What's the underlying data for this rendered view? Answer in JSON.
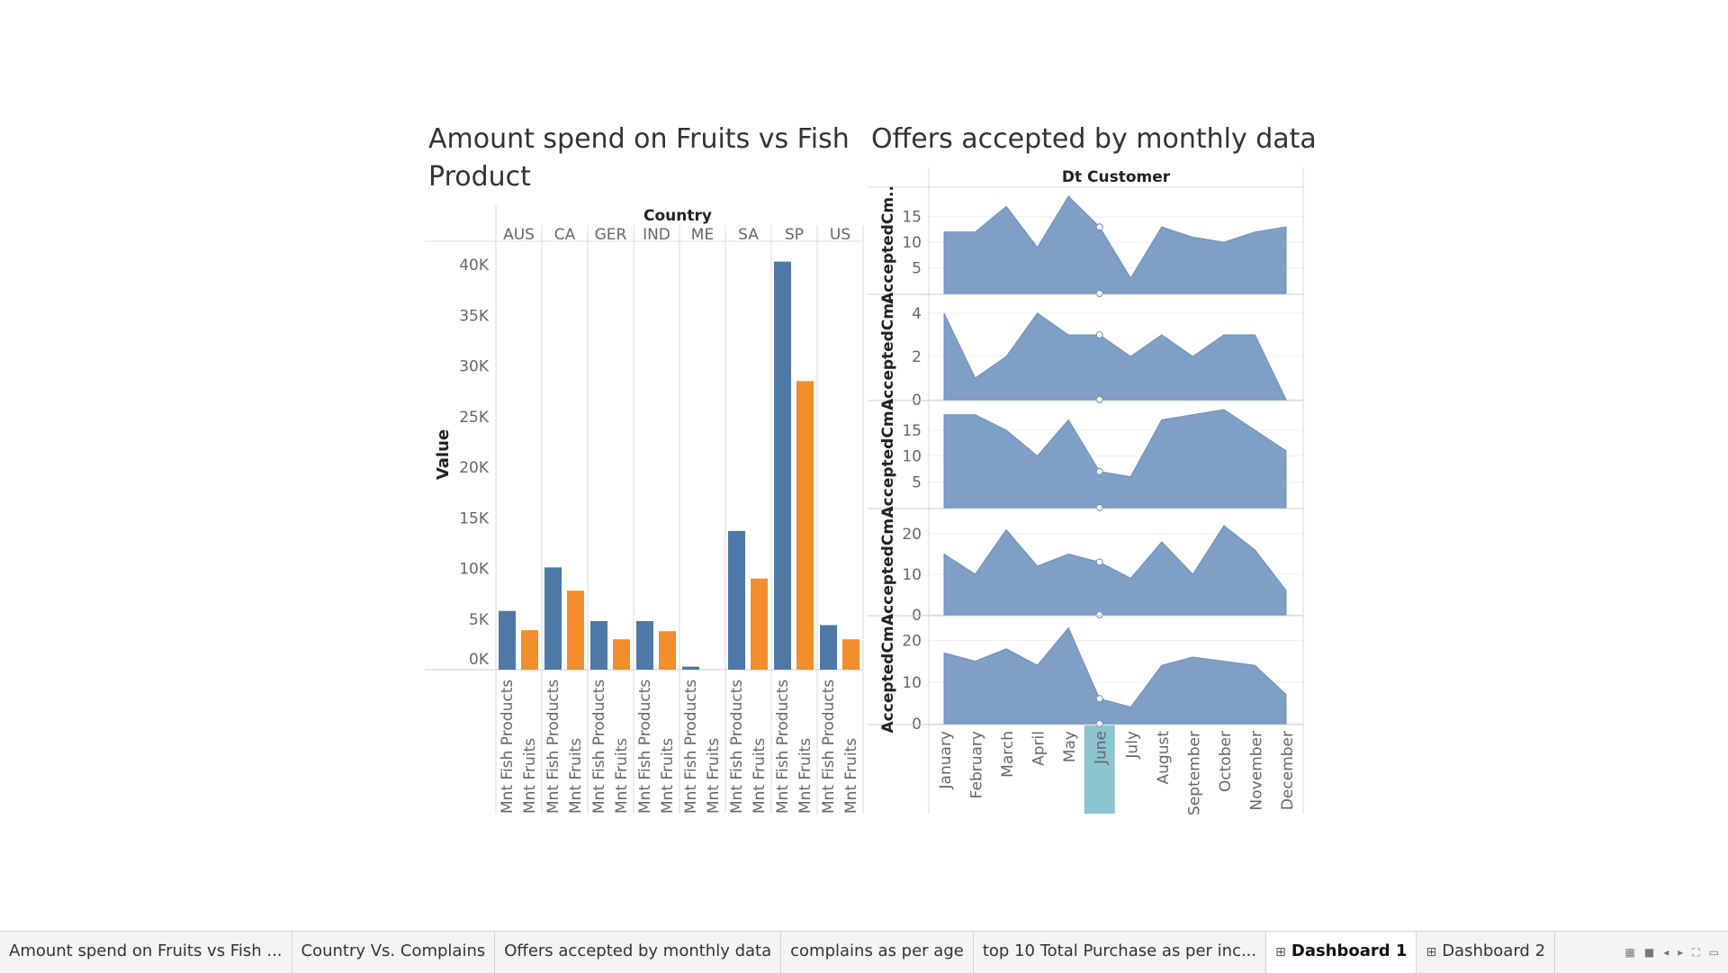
{
  "colors": {
    "fish": "#4e79a7",
    "fruits": "#f28e2b",
    "area": "#7f9fc7",
    "highlight": "#8cc4d0",
    "grid": "#eeeeee",
    "divider": "#d8d8d8"
  },
  "left_chart": {
    "title": "Amount spend on Fruits vs Fish Product",
    "column_header": "Country",
    "y_axis_label": "Value",
    "y_ticks": [
      "0K",
      "5K",
      "10K",
      "15K",
      "20K",
      "25K",
      "30K",
      "35K",
      "40K"
    ]
  },
  "right_chart": {
    "title": "Offers accepted by monthly data",
    "column_header": "Dt Customer",
    "row_labels": [
      "AcceptedCm..",
      "AcceptedCm..",
      "AcceptedCm..",
      "AcceptedCm..",
      "AcceptedCm.."
    ],
    "highlighted_month": "June"
  },
  "chart_data": [
    {
      "type": "bar",
      "title": "Amount spend on Fruits vs Fish Product",
      "xlabel": "Country",
      "ylabel": "Value",
      "ylim": [
        0,
        40000
      ],
      "categories": [
        "AUS",
        "CA",
        "GER",
        "IND",
        "ME",
        "SA",
        "SP",
        "US"
      ],
      "series": [
        {
          "name": "Mnt Fish Products",
          "values": [
            5800,
            10100,
            4800,
            4800,
            300,
            13700,
            40300,
            4400
          ]
        },
        {
          "name": "Mnt Fruits",
          "values": [
            3900,
            7800,
            3000,
            3800,
            0,
            9000,
            28500,
            3000
          ]
        }
      ],
      "legend": "none",
      "grid": false
    },
    {
      "type": "area",
      "title": "Offers accepted by monthly data",
      "xlabel": "Dt Customer",
      "categories": [
        "January",
        "February",
        "March",
        "April",
        "May",
        "June",
        "July",
        "August",
        "September",
        "October",
        "November",
        "December"
      ],
      "panels": [
        {
          "ylabel": "AcceptedCm..",
          "ylim": [
            0,
            19
          ],
          "ticks": [
            5,
            10,
            15
          ],
          "values": [
            12,
            12,
            17,
            9,
            19,
            13,
            3,
            13,
            11,
            10,
            12,
            13
          ]
        },
        {
          "ylabel": "AcceptedCm..",
          "ylim": [
            0,
            4.5
          ],
          "ticks": [
            0,
            2,
            4
          ],
          "values": [
            4,
            1,
            2,
            4,
            3,
            3,
            2,
            3,
            2,
            3,
            3,
            0
          ]
        },
        {
          "ylabel": "AcceptedCm..",
          "ylim": [
            0,
            19
          ],
          "ticks": [
            5,
            10,
            15
          ],
          "values": [
            18,
            18,
            15,
            10,
            17,
            7,
            6,
            17,
            18,
            19,
            15,
            11
          ]
        },
        {
          "ylabel": "AcceptedCm..",
          "ylim": [
            0,
            24
          ],
          "ticks": [
            0,
            10,
            20
          ],
          "values": [
            15,
            10,
            21,
            12,
            15,
            13,
            9,
            18,
            10,
            22,
            16,
            6
          ]
        },
        {
          "ylabel": "AcceptedCm..",
          "ylim": [
            0,
            24
          ],
          "ticks": [
            0,
            10,
            20
          ],
          "values": [
            17,
            15,
            18,
            14,
            23,
            6,
            4,
            14,
            16,
            15,
            14,
            7
          ]
        }
      ],
      "highlighted_category": "June",
      "legend": "none",
      "grid": true
    }
  ],
  "tabs": [
    {
      "label": "Amount spend on Fruits vs Fish ...",
      "active": false,
      "icon": ""
    },
    {
      "label": "Country Vs. Complains",
      "active": false,
      "icon": ""
    },
    {
      "label": "Offers accepted by monthly data",
      "active": false,
      "icon": ""
    },
    {
      "label": "complains as per age",
      "active": false,
      "icon": ""
    },
    {
      "label": "top 10 Total Purchase as per inc...",
      "active": false,
      "icon": ""
    },
    {
      "label": "Dashboard 1",
      "active": true,
      "icon": "dashboard-icon"
    },
    {
      "label": "Dashboard 2",
      "active": false,
      "icon": "dashboard-icon"
    }
  ],
  "tab_controls": [
    "grid-view-icon",
    "filmstrip-icon",
    "prev-arrow-icon",
    "next-arrow-icon",
    "fullscreen-icon",
    "present-icon"
  ]
}
